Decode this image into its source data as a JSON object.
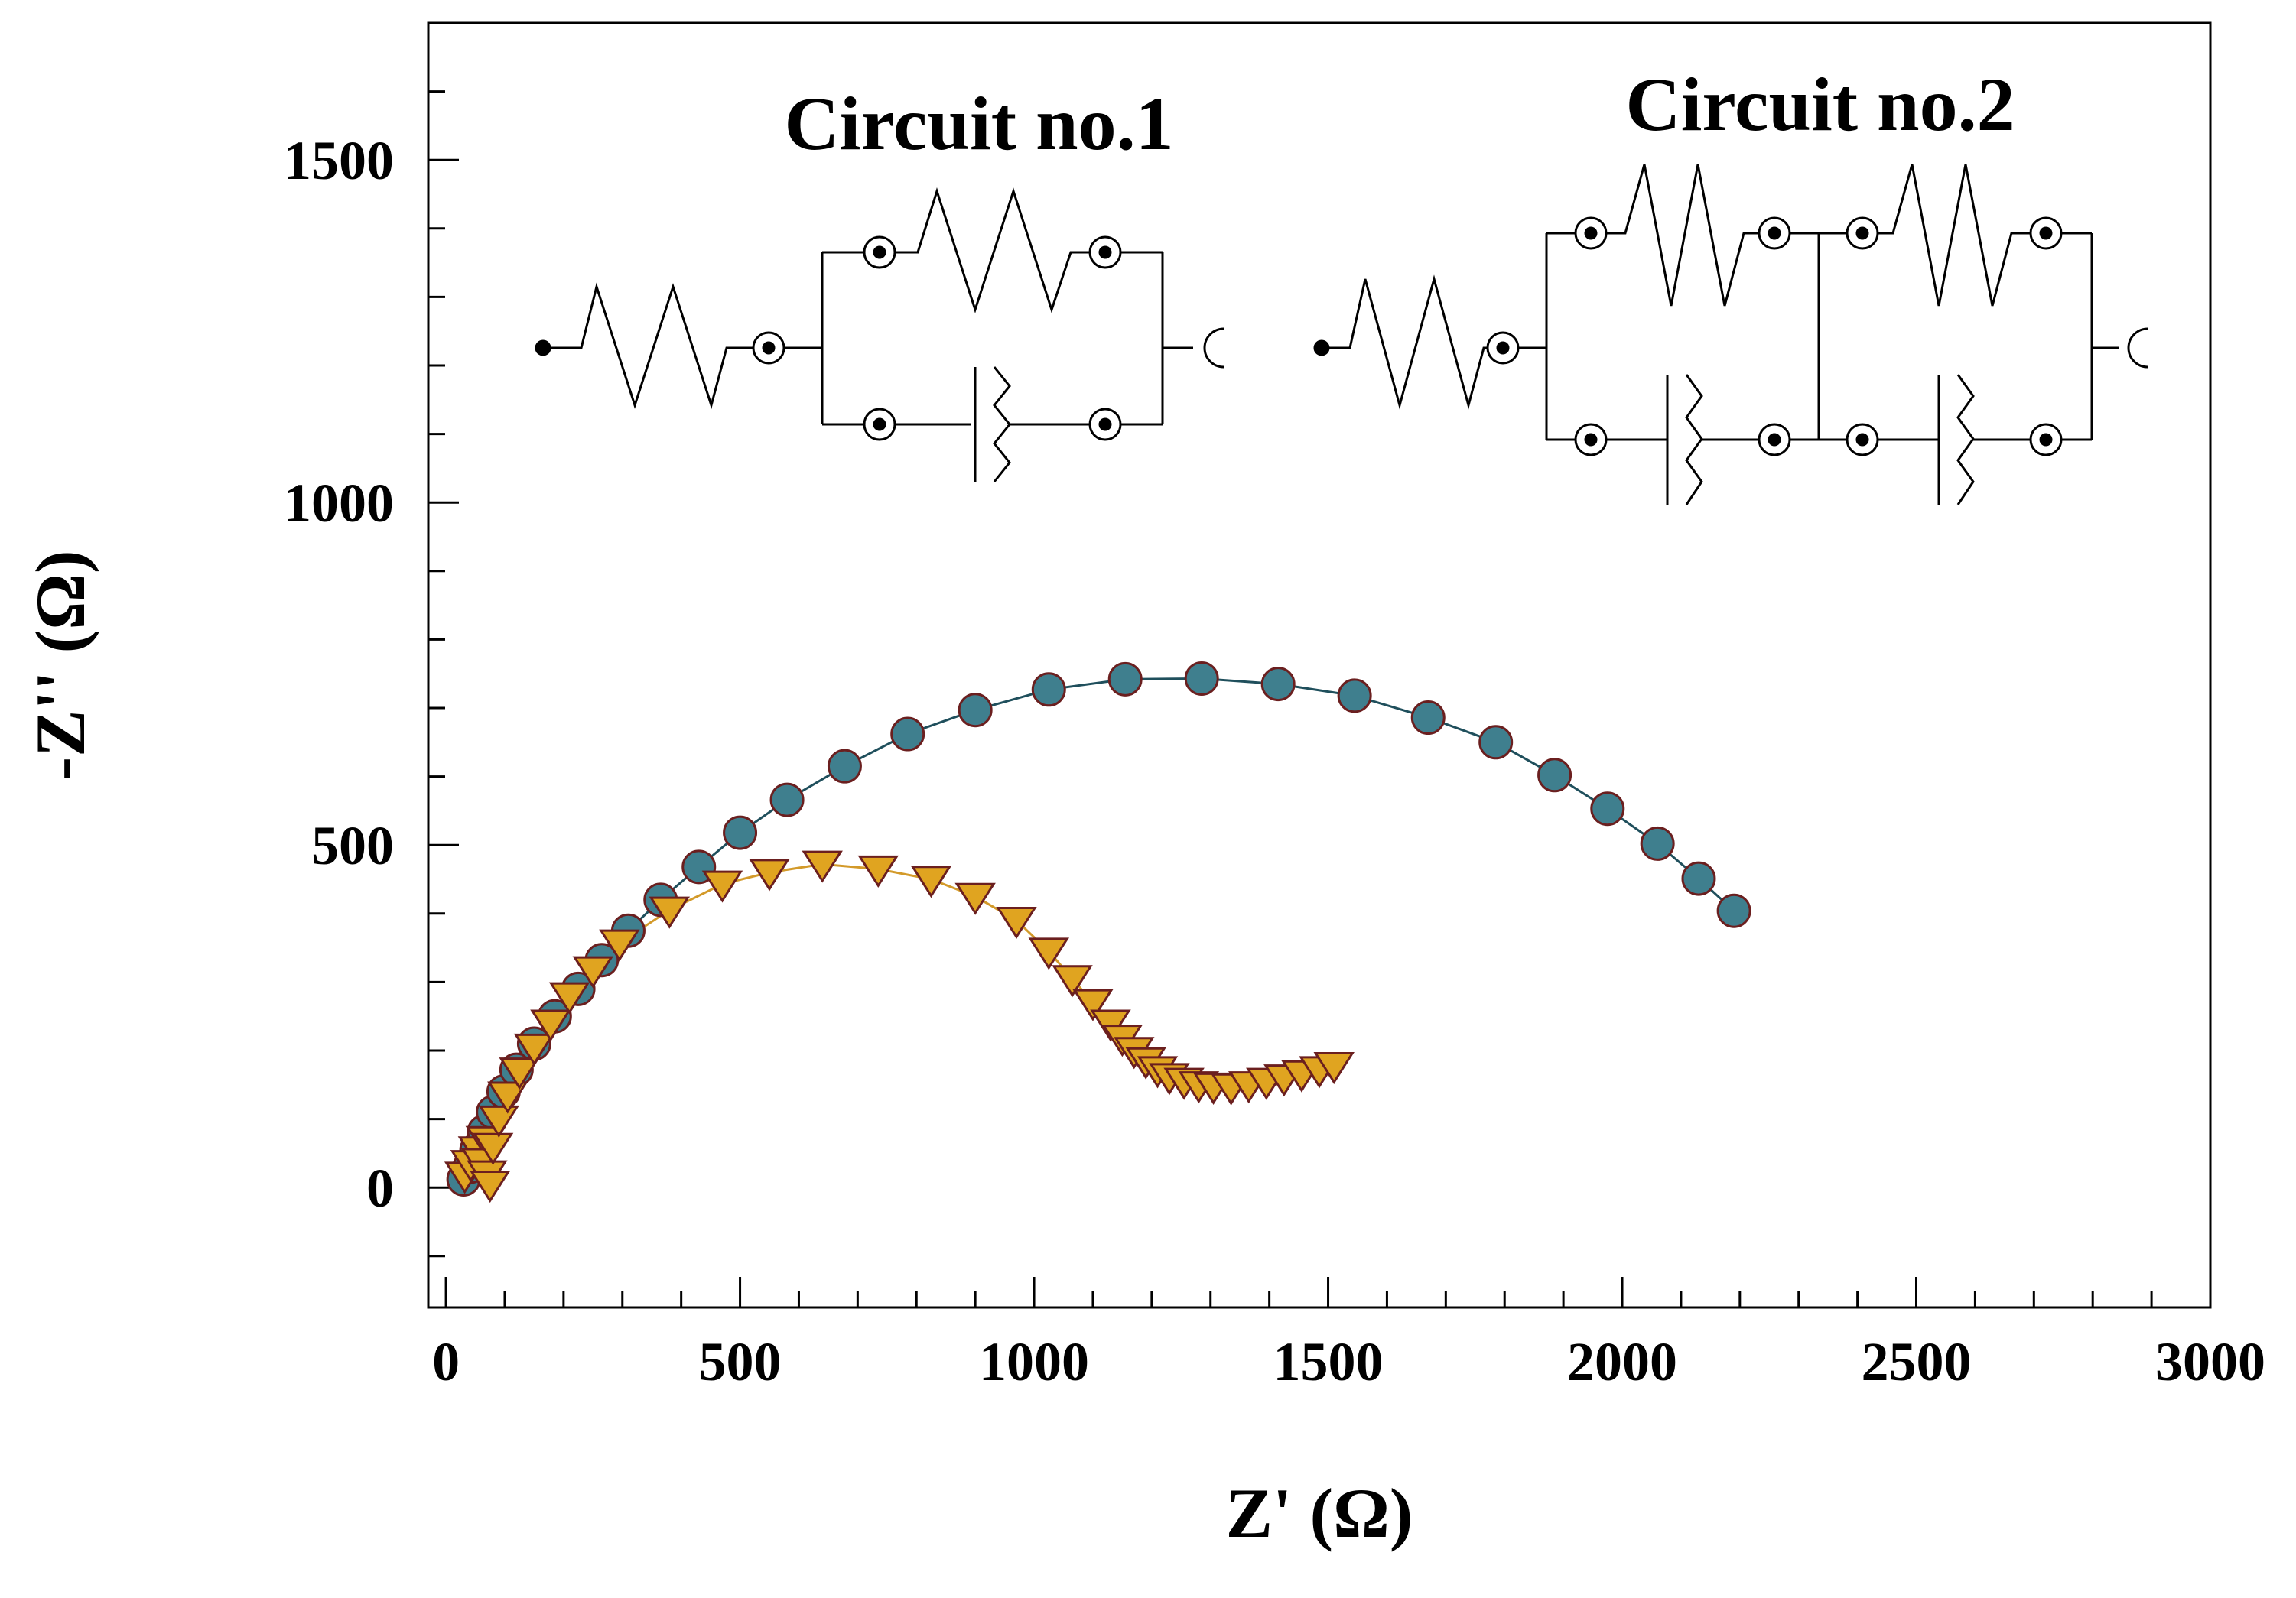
{
  "chart_data": {
    "type": "scatter",
    "xlabel": "Z' (Ω)",
    "ylabel": "-Z'' (Ω)",
    "xlim": [
      -30,
      3000
    ],
    "ylim": [
      -175,
      1700
    ],
    "x_ticks": [
      0,
      500,
      1000,
      1500,
      2000,
      2500,
      3000
    ],
    "x_tick_labels": [
      "0",
      "500",
      "1000",
      "1500",
      "2000",
      "2500",
      "3000"
    ],
    "y_ticks": [
      0,
      500,
      1000,
      1500
    ],
    "y_tick_labels": [
      "0",
      "500",
      "1000",
      "1500"
    ],
    "x_minor_step": 100,
    "y_minor_step": 100,
    "grid": false,
    "series": [
      {
        "name": "circles",
        "marker": "circle",
        "fill": "#3f7f8e",
        "edge": "#6b1f1f",
        "line_color": "#1f4f5c",
        "points": [
          [
            30,
            12
          ],
          [
            40,
            30
          ],
          [
            52,
            55
          ],
          [
            65,
            82
          ],
          [
            80,
            110
          ],
          [
            98,
            140
          ],
          [
            120,
            172
          ],
          [
            150,
            210
          ],
          [
            185,
            250
          ],
          [
            225,
            290
          ],
          [
            265,
            332
          ],
          [
            310,
            375
          ],
          [
            365,
            420
          ],
          [
            430,
            468
          ],
          [
            500,
            518
          ],
          [
            580,
            566
          ],
          [
            678,
            615
          ],
          [
            785,
            662
          ],
          [
            900,
            697
          ],
          [
            1025,
            727
          ],
          [
            1155,
            742
          ],
          [
            1285,
            743
          ],
          [
            1415,
            735
          ],
          [
            1545,
            718
          ],
          [
            1670,
            686
          ],
          [
            1785,
            650
          ],
          [
            1885,
            602
          ],
          [
            1975,
            553
          ],
          [
            2060,
            502
          ],
          [
            2130,
            451
          ],
          [
            2190,
            404
          ]
        ]
      },
      {
        "name": "triangles",
        "marker": "triangle-down",
        "fill": "#e0a420",
        "edge": "#6b1f1f",
        "line_color": "#d39a2a",
        "points": [
          [
            32,
            18
          ],
          [
            42,
            35
          ],
          [
            55,
            55
          ],
          [
            68,
            70
          ],
          [
            60,
            38
          ],
          [
            70,
            20
          ],
          [
            75,
            5
          ],
          [
            80,
            60
          ],
          [
            90,
            100
          ],
          [
            105,
            135
          ],
          [
            125,
            170
          ],
          [
            150,
            205
          ],
          [
            178,
            240
          ],
          [
            210,
            280
          ],
          [
            250,
            318
          ],
          [
            295,
            357
          ],
          [
            380,
            405
          ],
          [
            470,
            443
          ],
          [
            550,
            460
          ],
          [
            640,
            472
          ],
          [
            735,
            465
          ],
          [
            825,
            450
          ],
          [
            900,
            425
          ],
          [
            970,
            390
          ],
          [
            1025,
            345
          ],
          [
            1065,
            305
          ],
          [
            1100,
            270
          ],
          [
            1130,
            240
          ],
          [
            1150,
            218
          ],
          [
            1170,
            200
          ],
          [
            1190,
            185
          ],
          [
            1210,
            172
          ],
          [
            1230,
            162
          ],
          [
            1255,
            155
          ],
          [
            1280,
            150
          ],
          [
            1305,
            148
          ],
          [
            1335,
            147
          ],
          [
            1365,
            150
          ],
          [
            1395,
            155
          ],
          [
            1425,
            160
          ],
          [
            1455,
            166
          ],
          [
            1485,
            172
          ],
          [
            1510,
            178
          ]
        ]
      }
    ],
    "annotations": [
      "Circuit no.1",
      "Circuit no.2"
    ]
  }
}
